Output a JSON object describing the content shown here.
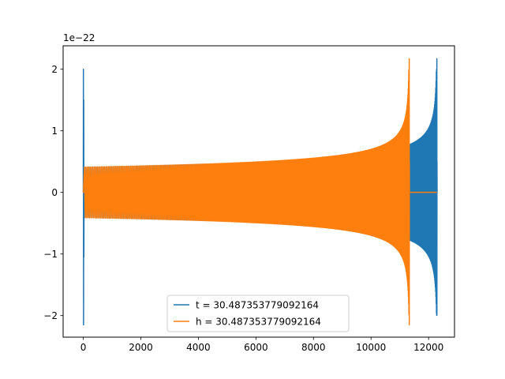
{
  "chart_data": {
    "type": "line",
    "title": "",
    "xlabel": "",
    "ylabel": "",
    "offset_text": "1e−22",
    "xlim": [
      -700,
      12900
    ],
    "ylim": [
      -2.35,
      2.38
    ],
    "x_ticks": [
      0,
      2000,
      4000,
      6000,
      8000,
      10000,
      12000
    ],
    "x_tick_labels": [
      "0",
      "2000",
      "4000",
      "6000",
      "8000",
      "10000",
      "12000"
    ],
    "y_ticks": [
      -2,
      -1,
      0,
      1,
      2
    ],
    "y_tick_labels": [
      "−2",
      "−1",
      "0",
      "1",
      "2"
    ],
    "grid": false,
    "legend_position": "bottom-center",
    "series": [
      {
        "name": "t = 30.487353779092164",
        "color": "#1f77b4",
        "x_start": 0,
        "x_merger": 12290,
        "x_end": 12290,
        "initial_spike": 2.0,
        "initial_trough": -2.15,
        "start_amplitude": 0.41,
        "merger_peak": 2.17,
        "merger_trough": -1.98,
        "zero_segment": [
          0,
          1000
        ]
      },
      {
        "name": "h = 30.487353779092164",
        "color": "#ff7f0e",
        "x_start": 0,
        "x_merger": 11330,
        "x_end": 12290,
        "initial_spike": 0.0,
        "initial_trough": 0.0,
        "start_amplitude": 0.41,
        "merger_peak": 2.17,
        "merger_trough": -2.15,
        "zero_segment": [
          0,
          1000
        ]
      }
    ]
  }
}
